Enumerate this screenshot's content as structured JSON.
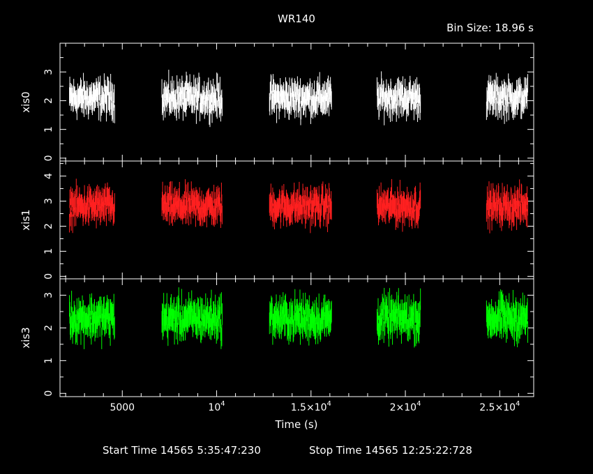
{
  "title": "WR140",
  "bin_label": "Bin Size: 18.96 s",
  "xlabel": "Time (s)",
  "footer": {
    "start": "Start Time 14565  5:35:47:230",
    "stop": "Stop Time 14565 12:25:22:728"
  },
  "x_ticks": [
    {
      "value": 5000,
      "label": "5000",
      "exp": ""
    },
    {
      "value": 10000,
      "label": "10",
      "exp": "4"
    },
    {
      "value": 15000,
      "label": "1.5×10",
      "exp": "4"
    },
    {
      "value": 20000,
      "label": "2×10",
      "exp": "4"
    },
    {
      "value": 25000,
      "label": "2.5×10",
      "exp": "4"
    }
  ],
  "chart_data": {
    "type": "scatter",
    "xlim": [
      1700,
      26800
    ],
    "x_minor_step": 1000,
    "error_bars": true,
    "series": [
      {
        "name": "xis0",
        "color": "#ffffff",
        "ylim": [
          -0.1,
          4.0
        ],
        "yticks": [
          0,
          1,
          2,
          3
        ],
        "y_minor_step": 0.5,
        "baseline": 2.1,
        "spread": 0.35,
        "err": 0.32,
        "segments": [
          [
            2200,
            4600
          ],
          [
            7100,
            10300
          ],
          [
            12800,
            16100
          ],
          [
            18500,
            20800
          ],
          [
            24300,
            26500
          ]
        ]
      },
      {
        "name": "xis1",
        "color": "#ff2020",
        "ylim": [
          -0.1,
          4.6
        ],
        "yticks": [
          0,
          1,
          2,
          3,
          4
        ],
        "y_minor_step": 0.5,
        "baseline": 2.8,
        "spread": 0.4,
        "err": 0.37,
        "segments": [
          [
            2200,
            4600
          ],
          [
            7100,
            10300
          ],
          [
            12800,
            16100
          ],
          [
            18500,
            20800
          ],
          [
            24300,
            26500
          ]
        ]
      },
      {
        "name": "xis3",
        "color": "#00ff00",
        "ylim": [
          -0.1,
          3.5
        ],
        "yticks": [
          0,
          1,
          2,
          3
        ],
        "y_minor_step": 0.5,
        "baseline": 2.3,
        "spread": 0.35,
        "err": 0.33,
        "segments": [
          [
            2200,
            4600
          ],
          [
            7100,
            10300
          ],
          [
            12800,
            16100
          ],
          [
            18500,
            20800
          ],
          [
            24300,
            26500
          ]
        ]
      }
    ]
  }
}
